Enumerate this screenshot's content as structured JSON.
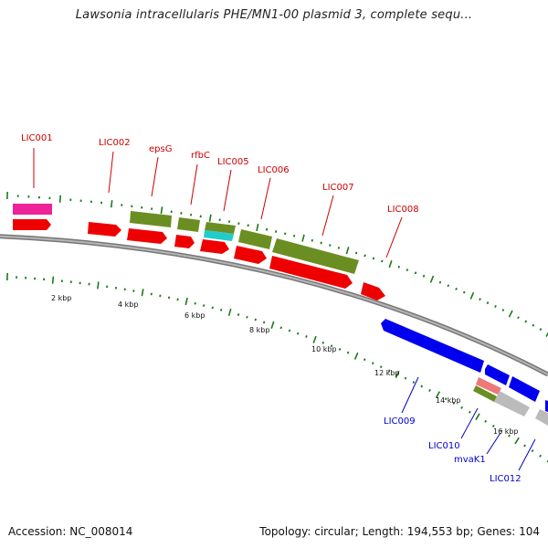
{
  "title": "Lawsonia intracellularis PHE/MN1-00 plasmid 3, complete sequ...",
  "footer": {
    "accession": "Accession: NC_008014",
    "summary": "Topology: circular; Length: 194,553 bp; Genes: 104"
  },
  "colors": {
    "backbone": "#888888",
    "forward_label": "#cc0000",
    "reverse_label": "#0000cc",
    "leader": "#cc0000",
    "leader_reverse": "#0000cc",
    "tick": "#1a7a1a",
    "cds_red": "#ee0000",
    "olive": "#6b8e23",
    "magenta": "#ee2299",
    "cyan": "#22cccc",
    "blue": "#0000ee",
    "grey": "#bbbbbb",
    "salmon": "#ee7777"
  },
  "kbp_ticks": [
    "2 kbp",
    "4 kbp",
    "6 kbp",
    "8 kbp",
    "10 kbp",
    "12 kbp",
    "14 kbp",
    "16 kbp"
  ],
  "forward_labels": [
    "LIC001",
    "LIC002",
    "epsG",
    "rfbC",
    "LIC005",
    "LIC006",
    "LIC007",
    "LIC008"
  ],
  "reverse_labels": [
    "LIC009",
    "LIC010",
    "mvaK1",
    "LIC012"
  ]
}
